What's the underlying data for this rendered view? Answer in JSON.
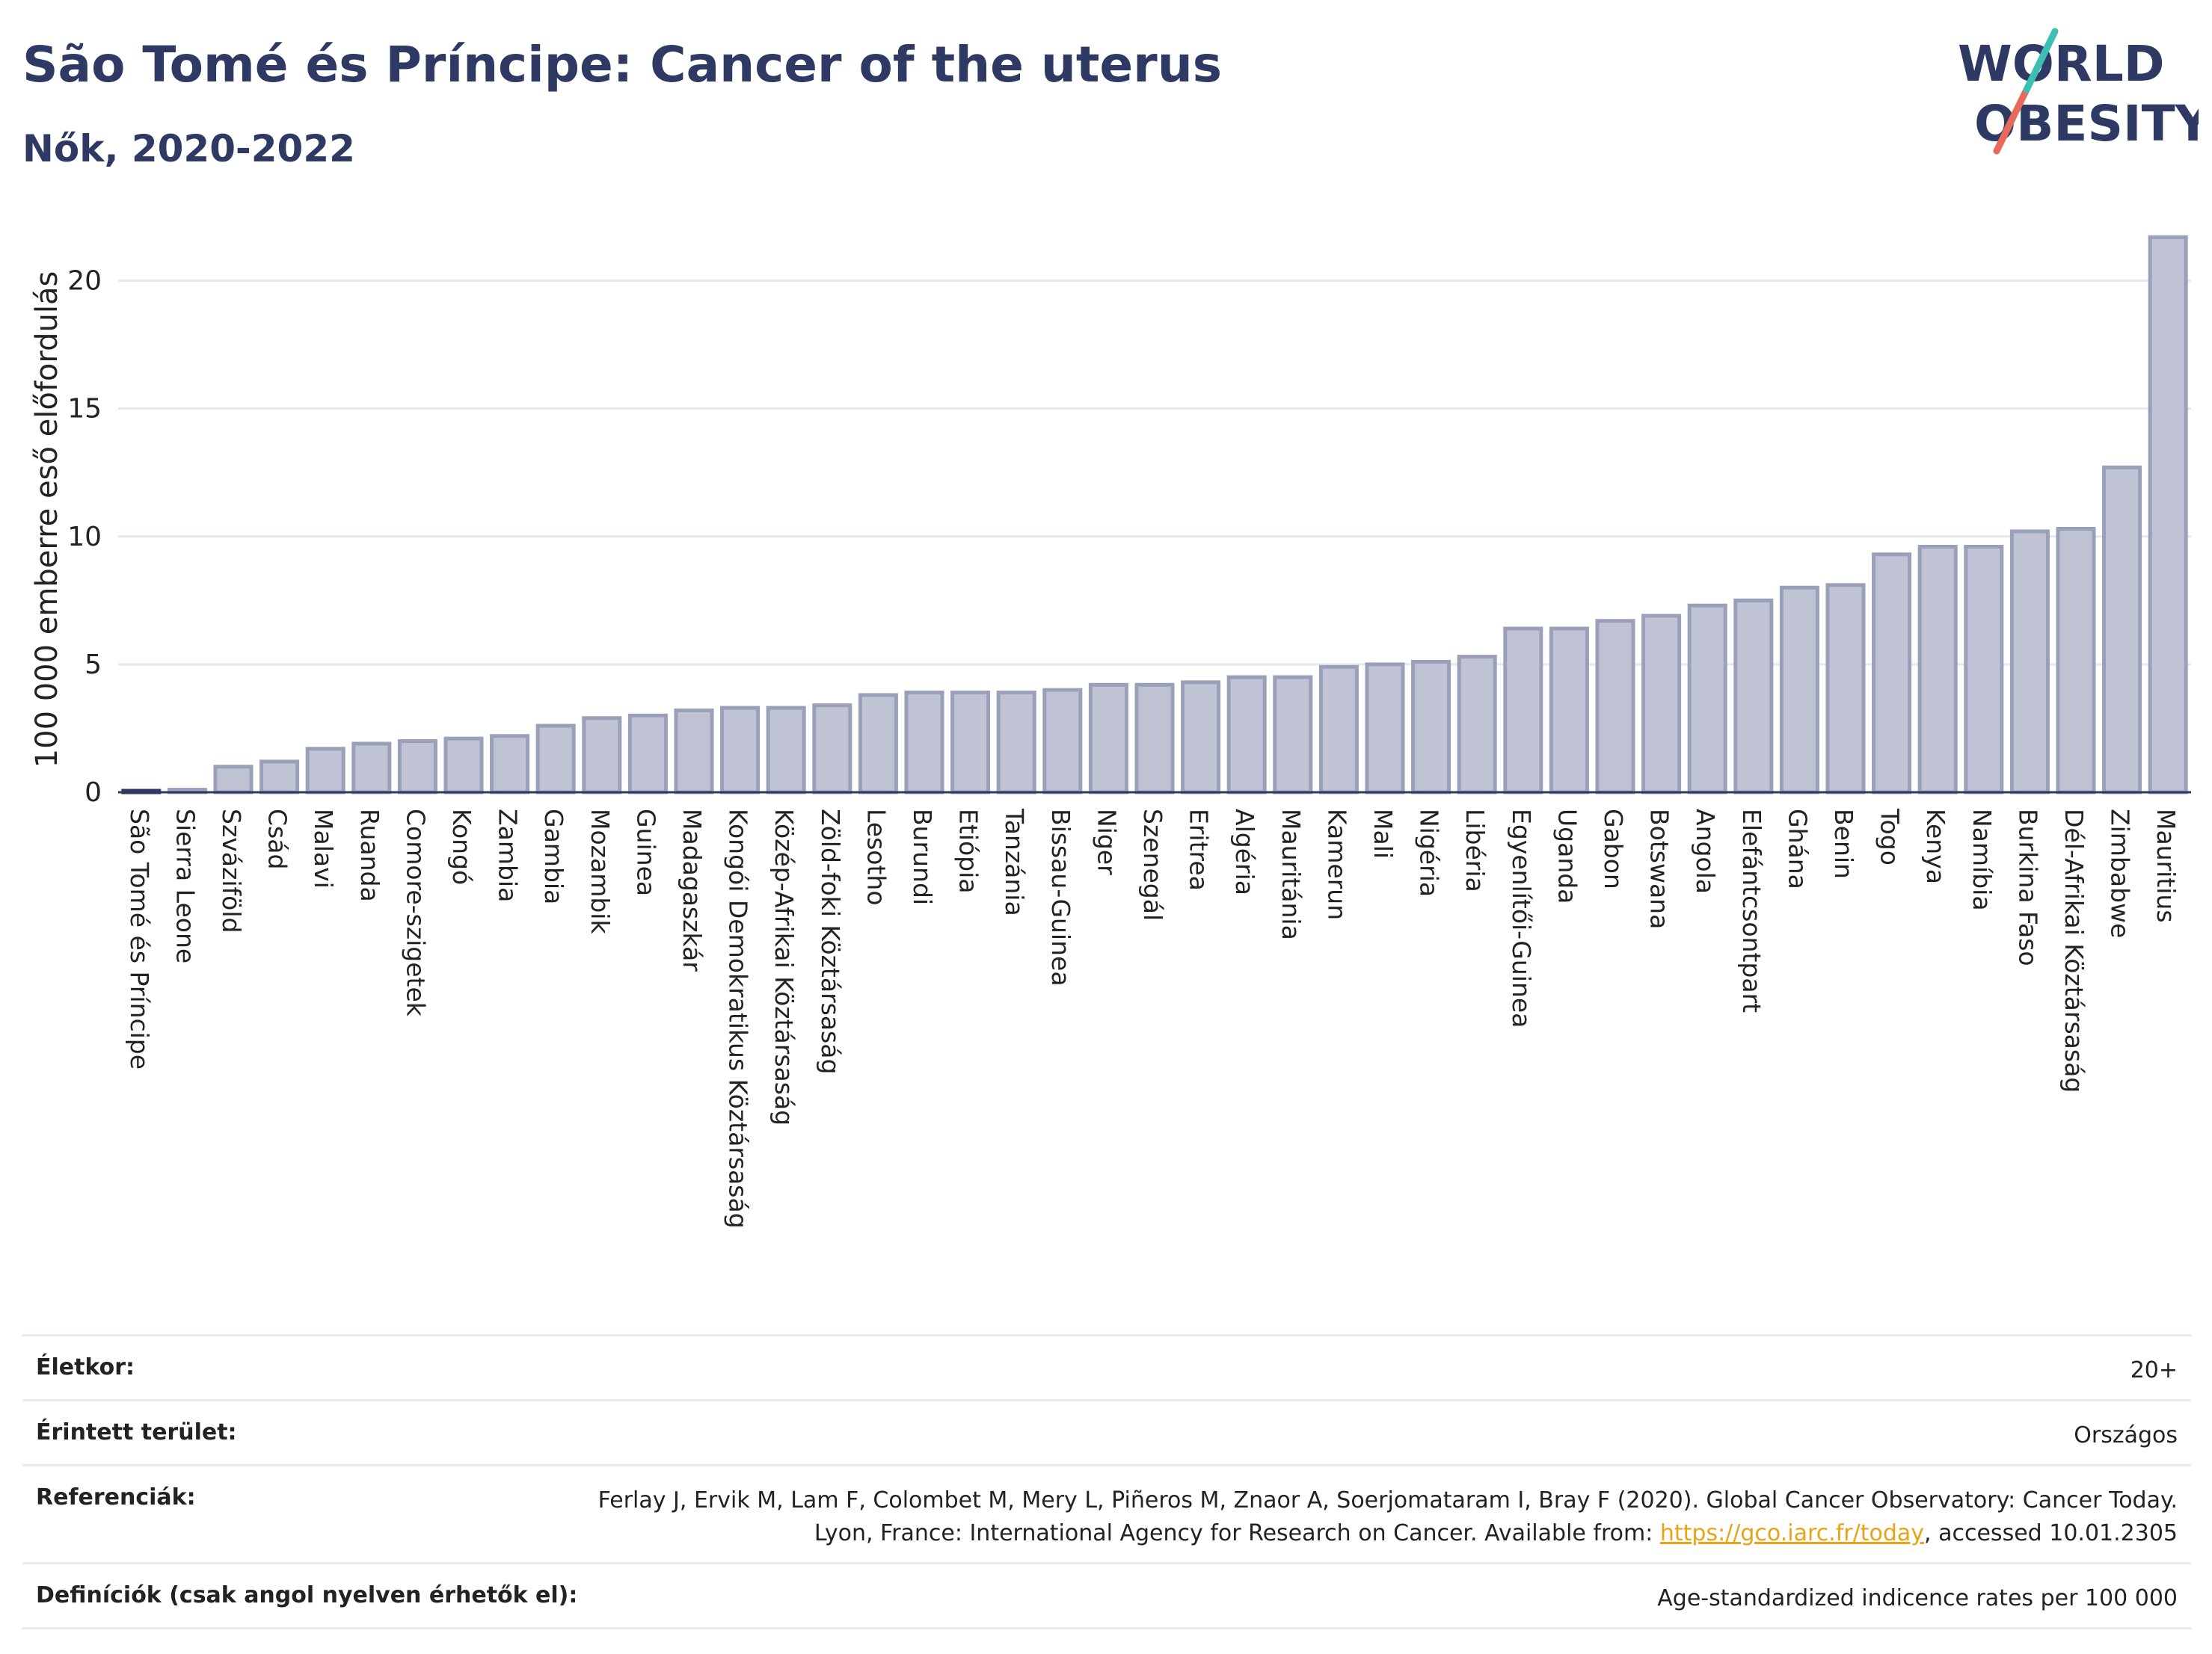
{
  "header": {
    "title": "São Tomé és Príncipe: Cancer of the uterus",
    "subtitle": "Nők, 2020-2022"
  },
  "logo": {
    "line1": "WORLD",
    "line2": "OBESITY"
  },
  "colors": {
    "bar": "#bfc3d3",
    "bar_stroke": "#9aa0ba",
    "highlight": "#2e3a64",
    "title": "#2e3a64",
    "link": "#e8a317"
  },
  "chart_data": {
    "type": "bar",
    "ylabel": "100 000 emberre eső előfordulás",
    "ylim": [
      0,
      22.5
    ],
    "yticks": [
      0,
      5,
      10,
      15,
      20
    ],
    "grid": true,
    "highlight_category": "São Tomé és Príncipe",
    "categories": [
      "São Tomé és Príncipe",
      "Sierra Leone",
      "Szváziföld",
      "Csád",
      "Malavi",
      "Ruanda",
      "Comore-szigetek",
      "Kongó",
      "Zambia",
      "Gambia",
      "Mozambik",
      "Guinea",
      "Madagaszkár",
      "Kongói Demokratikus Köztársaság",
      "Közép-Afrikai Köztársaság",
      "Zöld-foki Köztársaság",
      "Lesotho",
      "Burundi",
      "Etiópia",
      "Tanzánia",
      "Bissau-Guinea",
      "Niger",
      "Szenegál",
      "Eritrea",
      "Algéria",
      "Mauritánia",
      "Kamerun",
      "Mali",
      "Nigéria",
      "Libéria",
      "Egyenlítői-Guinea",
      "Uganda",
      "Gabon",
      "Botswana",
      "Angola",
      "Elefántcsontpart",
      "Ghána",
      "Benin",
      "Togo",
      "Kenya",
      "Namíbia",
      "Burkina Faso",
      "Dél-Afrikai Köztársaság",
      "Zimbabwe",
      "Mauritius"
    ],
    "values": [
      0.05,
      0.1,
      1.0,
      1.2,
      1.7,
      1.9,
      2.0,
      2.1,
      2.2,
      2.6,
      2.9,
      3.0,
      3.2,
      3.3,
      3.3,
      3.4,
      3.8,
      3.9,
      3.9,
      3.9,
      4.0,
      4.2,
      4.2,
      4.3,
      4.5,
      4.5,
      4.9,
      5.0,
      5.1,
      5.3,
      6.4,
      6.4,
      6.7,
      6.9,
      7.3,
      7.5,
      8.0,
      8.1,
      9.3,
      9.6,
      9.6,
      10.2,
      10.3,
      12.7,
      21.7
    ]
  },
  "info": {
    "age_label": "Életkor:",
    "age_value": "20+",
    "area_label": "Érintett terület:",
    "area_value": "Országos",
    "ref_label": "Referenciák:",
    "ref_text_1": "Ferlay J, Ervik M, Lam F, Colombet M, Mery L, Piñeros M, Znaor A, Soerjomataram I, Bray F (2020). Global Cancer Observatory: Cancer Today. Lyon, France: International Agency for Research on Cancer. Available from: ",
    "ref_link": "https://gco.iarc.fr/today",
    "ref_text_2": ", accessed 10.01.2305",
    "def_label": "Definíciók (csak angol nyelven érhetők el):",
    "def_value": "Age-standardized indicence rates per 100 000"
  }
}
